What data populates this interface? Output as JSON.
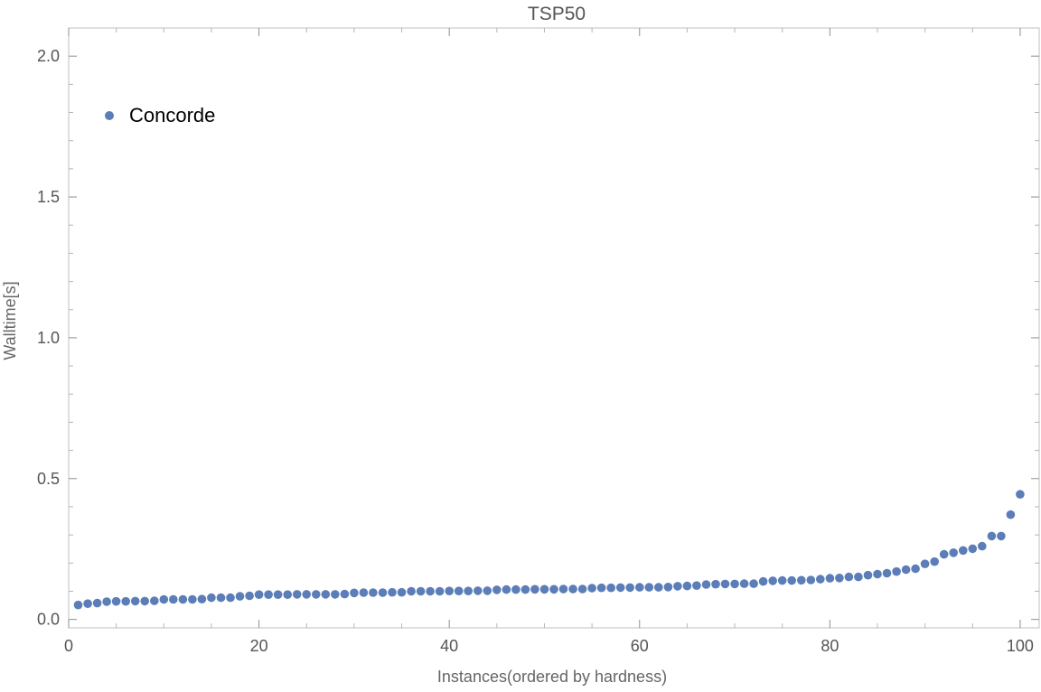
{
  "chart_data": {
    "type": "scatter",
    "title": "TSP50",
    "xlabel": "Instances(ordered by hardness)",
    "ylabel": "Walltime[s]",
    "xlim": [
      0,
      102
    ],
    "ylim": [
      -0.03,
      2.1
    ],
    "x_ticks": [
      0,
      20,
      40,
      60,
      80,
      100
    ],
    "x_tick_labels": [
      "0",
      "20",
      "40",
      "60",
      "80",
      "100"
    ],
    "y_ticks": [
      0.0,
      0.5,
      1.0,
      1.5,
      2.0
    ],
    "y_tick_labels": [
      "0.0",
      "0.5",
      "1.0",
      "1.5",
      "2.0"
    ],
    "grid": false,
    "legend_position": "top-left",
    "series": [
      {
        "name": "Concorde",
        "color": "#5b7db8",
        "x": [
          1,
          2,
          3,
          4,
          5,
          6,
          7,
          8,
          9,
          10,
          11,
          12,
          13,
          14,
          15,
          16,
          17,
          18,
          19,
          20,
          21,
          22,
          23,
          24,
          25,
          26,
          27,
          28,
          29,
          30,
          31,
          32,
          33,
          34,
          35,
          36,
          37,
          38,
          39,
          40,
          41,
          42,
          43,
          44,
          45,
          46,
          47,
          48,
          49,
          50,
          51,
          52,
          53,
          54,
          55,
          56,
          57,
          58,
          59,
          60,
          61,
          62,
          63,
          64,
          65,
          66,
          67,
          68,
          69,
          70,
          71,
          72,
          73,
          74,
          75,
          76,
          77,
          78,
          79,
          80,
          81,
          82,
          83,
          84,
          85,
          86,
          87,
          88,
          89,
          90,
          91,
          92,
          93,
          94,
          95,
          96,
          97,
          98,
          99,
          100
        ],
        "y": [
          0.051,
          0.056,
          0.058,
          0.063,
          0.064,
          0.064,
          0.065,
          0.065,
          0.066,
          0.071,
          0.071,
          0.071,
          0.071,
          0.072,
          0.077,
          0.077,
          0.077,
          0.082,
          0.084,
          0.088,
          0.088,
          0.088,
          0.088,
          0.089,
          0.089,
          0.089,
          0.089,
          0.089,
          0.09,
          0.094,
          0.095,
          0.095,
          0.095,
          0.096,
          0.096,
          0.1,
          0.1,
          0.1,
          0.1,
          0.101,
          0.101,
          0.101,
          0.102,
          0.102,
          0.105,
          0.106,
          0.106,
          0.106,
          0.107,
          0.107,
          0.107,
          0.108,
          0.108,
          0.108,
          0.111,
          0.112,
          0.112,
          0.113,
          0.113,
          0.114,
          0.114,
          0.114,
          0.115,
          0.118,
          0.119,
          0.12,
          0.124,
          0.125,
          0.126,
          0.126,
          0.127,
          0.127,
          0.135,
          0.137,
          0.138,
          0.138,
          0.139,
          0.14,
          0.143,
          0.146,
          0.147,
          0.151,
          0.151,
          0.157,
          0.161,
          0.164,
          0.17,
          0.177,
          0.18,
          0.197,
          0.205,
          0.231,
          0.237,
          0.245,
          0.251,
          0.26,
          0.296,
          0.296,
          0.372,
          0.444
        ]
      }
    ]
  }
}
